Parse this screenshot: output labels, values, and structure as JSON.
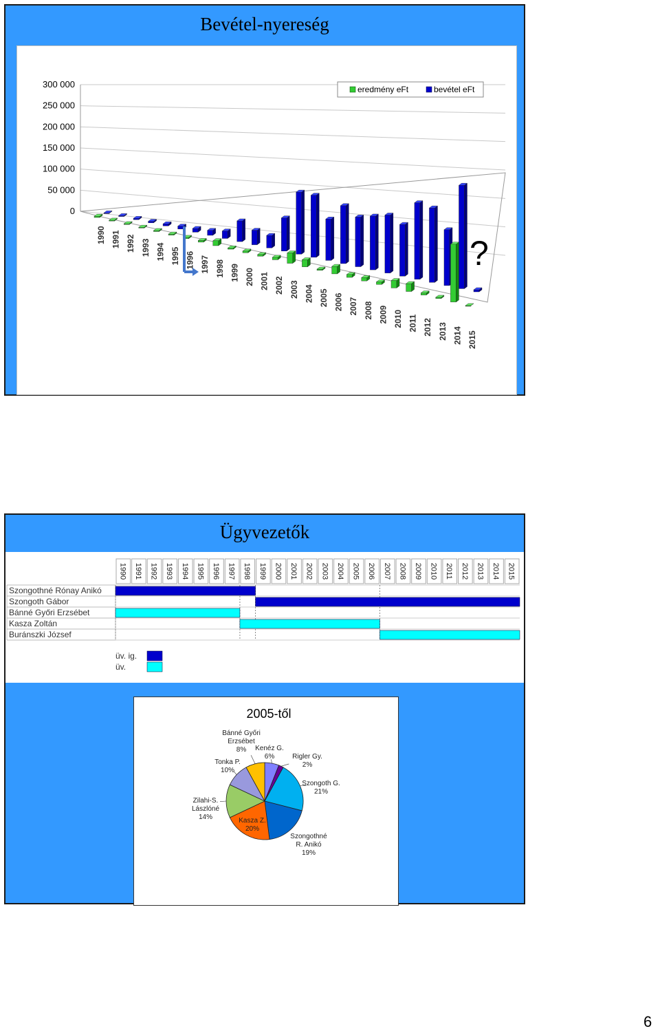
{
  "slide1": {
    "title": "Bevétel-nyereség",
    "question_mark": "?",
    "chart_data": {
      "type": "bar",
      "title": "",
      "categories": [
        "1990",
        "1991",
        "1992",
        "1993",
        "1994",
        "1995",
        "1996",
        "1997",
        "1998",
        "1999",
        "2000",
        "2001",
        "2002",
        "2003",
        "2004",
        "2005",
        "2006",
        "2007",
        "2008",
        "2009",
        "2010",
        "2011",
        "2012",
        "2013",
        "2014",
        "2015"
      ],
      "series": [
        {
          "name": "eredmény eFt",
          "color": "#33cc33",
          "values": [
            3000,
            2000,
            2000,
            2000,
            2500,
            2500,
            3000,
            4000,
            12000,
            3000,
            4000,
            4000,
            6000,
            25000,
            17000,
            3000,
            18000,
            7000,
            8000,
            6000,
            18000,
            19000,
            5000,
            3000,
            140000,
            0
          ]
        },
        {
          "name": "bevétel eFt",
          "color": "#0000cc",
          "values": [
            1000,
            2000,
            3000,
            3500,
            5000,
            7000,
            9000,
            12000,
            18000,
            50000,
            35000,
            30000,
            80000,
            150000,
            150000,
            100000,
            140000,
            120000,
            130000,
            140000,
            125000,
            185000,
            180000,
            135000,
            250000,
            5000
          ]
        }
      ],
      "ylim": [
        0,
        300000
      ],
      "yticks": [
        "0",
        "50 000",
        "100 000",
        "150 000",
        "200 000",
        "250 000",
        "300 000"
      ],
      "legend": "top-right",
      "grid": true
    }
  },
  "slide2": {
    "title": "Ügyvezetők",
    "years": [
      "1990",
      "1991",
      "1992",
      "1993",
      "1994",
      "1995",
      "1996",
      "1997",
      "1998",
      "1999",
      "2000",
      "2001",
      "2002",
      "2003",
      "2004",
      "2005",
      "2006",
      "2007",
      "2008",
      "2009",
      "2010",
      "2011",
      "2012",
      "2013",
      "2014",
      "2015"
    ],
    "people": [
      "Szongothné Rónay Anikó",
      "Szongoth Gábor",
      "Bánné Győri Erzsébet",
      "Kasza Zoltán",
      "Buránszki József"
    ],
    "bars": [
      {
        "row": 0,
        "start_year": 1990,
        "end_year": 1998,
        "role": "üv. ig."
      },
      {
        "row": 1,
        "start_year": 1999,
        "end_year": 2015,
        "role": "üv. ig."
      },
      {
        "row": 2,
        "start_year": 1990,
        "end_year": 1997,
        "role": "üv."
      },
      {
        "row": 3,
        "start_year": 1998,
        "end_year": 2006,
        "role": "üv."
      },
      {
        "row": 4,
        "start_year": 2007,
        "end_year": 2015,
        "role": "üv."
      }
    ],
    "legend": [
      {
        "label": "üv. ig.",
        "color": "#0000cc"
      },
      {
        "label": "üv.",
        "color": "#00ffff"
      }
    ],
    "pie": {
      "chart_data": {
        "type": "pie",
        "title": "2005-től",
        "slices": [
          {
            "label": "Kenéz G.",
            "pct": "6%",
            "value": 6,
            "color": "#8080ff"
          },
          {
            "label": "Rigler Gy.",
            "pct": "2%",
            "value": 2,
            "color": "#660099"
          },
          {
            "label": "Szongoth G.",
            "pct": "21%",
            "value": 21,
            "color": "#00b0f0"
          },
          {
            "label": "Szongothné R. Anikó",
            "pct": "19%",
            "value": 19,
            "color": "#0066cc"
          },
          {
            "label": "Kasza Z.",
            "pct": "20%",
            "value": 20,
            "color": "#ff6600"
          },
          {
            "label": "Zilahi-S. Lászlóné",
            "pct": "14%",
            "value": 14,
            "color": "#99cc66"
          },
          {
            "label": "Tonka P.",
            "pct": "10%",
            "value": 10,
            "color": "#9999dd"
          },
          {
            "label": "Bánné Győri Erzsébet",
            "pct": "8%",
            "value": 8,
            "color": "#ffc000"
          }
        ]
      }
    }
  },
  "page_number": "6"
}
